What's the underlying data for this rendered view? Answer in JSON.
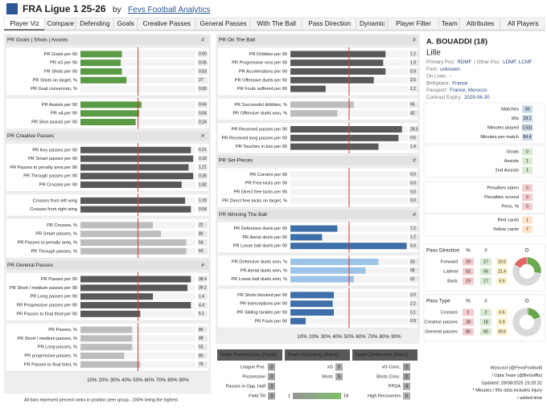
{
  "header": {
    "title": "FRA Ligue 1 25-26",
    "by": "by",
    "source": "Fevs Football Analytics"
  },
  "tabs": [
    "Player Viz",
    "Compare",
    "Defending",
    "Goals",
    "Creative Passes",
    "General Passes",
    "With The Ball",
    "Pass Direction",
    "Dynamic",
    "Player Filter",
    "Team",
    "Attributes",
    "All Players"
  ],
  "active_tab": 0,
  "bar_axis": {
    "xlim": [
      0,
      100
    ],
    "xticks": [
      {
        "value": 10,
        "label": "10%"
      },
      {
        "value": 20,
        "label": "20%"
      },
      {
        "value": 30,
        "label": "30%"
      },
      {
        "value": 40,
        "label": "40%"
      },
      {
        "value": 50,
        "label": "50%"
      },
      {
        "value": 60,
        "label": "60%"
      },
      {
        "value": 70,
        "label": "70%"
      },
      {
        "value": 80,
        "label": "80%"
      },
      {
        "value": 90,
        "label": "90%"
      }
    ],
    "reference": 50,
    "reference_color": "#e03131"
  },
  "left_panel": {
    "sections": [
      {
        "title": "PR Goals | Shots | Assists",
        "column": "#",
        "groups": [
          {
            "color": "#5b9b45",
            "rows": [
              {
                "label": "PR Goals per 90",
                "rank": 36,
                "value": "0.00"
              },
              {
                "label": "PR xG per 90",
                "rank": 35,
                "value": "0.06"
              },
              {
                "label": "PR Shots per 90",
                "rank": 36,
                "value": "0.53"
              },
              {
                "label": "PR Shots on target, %",
                "rank": 40,
                "value": "27"
              },
              {
                "label": "PR Goal conversion, %",
                "rank": 0,
                "value": "0.00"
              }
            ]
          },
          {
            "color": "#5b9b45",
            "rows": [
              {
                "label": "PR Assists per 90",
                "rank": 53,
                "value": "0.04"
              },
              {
                "label": "PR xA per 90",
                "rank": 51,
                "value": "0.04"
              },
              {
                "label": "PR Shot assists per 90",
                "rank": 48,
                "value": "0.24"
              }
            ]
          }
        ]
      },
      {
        "title": "PR Creative Passes",
        "column": "#",
        "groups": [
          {
            "color": "#595959",
            "rows": [
              {
                "label": "PR Key passes per 90",
                "rank": 96,
                "value": "0.21"
              },
              {
                "label": "PR Smart passes per 90",
                "rank": 98,
                "value": "0.18"
              },
              {
                "label": "PR Passes to penalty area per 90",
                "rank": 94,
                "value": "1.21"
              },
              {
                "label": "PR Through passes per 90",
                "rank": 98,
                "value": "0.35"
              },
              {
                "label": "PR Crosses per 90",
                "rank": 88,
                "value": "1.82"
              }
            ]
          },
          {
            "color": "#595959",
            "rows": [
              {
                "label": "Crosses from left wing",
                "rank": 91,
                "value": "1.19"
              },
              {
                "label": "Crosses from right wing",
                "rank": 96,
                "value": "0.64"
              }
            ]
          },
          {
            "color": "#bdbdbd",
            "rows": [
              {
                "label": "PR Crosses, %",
                "rank": 63,
                "value": "22"
              },
              {
                "label": "PR Smart passes, %",
                "rank": 70,
                "value": "80"
              },
              {
                "label": "PR Passes to penalty area, %",
                "rank": 92,
                "value": "54"
              },
              {
                "label": "PR Through passes, %",
                "rank": 92,
                "value": "60"
              }
            ]
          }
        ]
      },
      {
        "title": "PR General Passes",
        "column": "#",
        "groups": [
          {
            "color": "#595959",
            "rows": [
              {
                "label": "PR Passes per 90",
                "rank": 96,
                "value": "38.4"
              },
              {
                "label": "PR Short / medium passes per 90",
                "rank": 93,
                "value": "36.2"
              },
              {
                "label": "PR Long passes per 90",
                "rank": 63,
                "value": "1.4"
              },
              {
                "label": "PR Progressive passes per 90",
                "rank": 96,
                "value": "4.4"
              },
              {
                "label": "PR Passes to final third per 90",
                "rank": 52,
                "value": "5.1"
              }
            ]
          },
          {
            "color": "#bdbdbd",
            "rows": [
              {
                "label": "PR Passes, %",
                "rank": 45,
                "value": "86"
              },
              {
                "label": "PR Short / medium passes, %",
                "rank": 45,
                "value": "88"
              },
              {
                "label": "PR Long passes, %",
                "rank": 45,
                "value": "55"
              },
              {
                "label": "PR progressive passes, %",
                "rank": 38,
                "value": "80"
              },
              {
                "label": "PR Passes to final third, %",
                "rank": 52,
                "value": "76"
              }
            ]
          }
        ]
      }
    ],
    "note": "All bars represent percent ranks in position peer group - 100% being the highest"
  },
  "middle_panel": {
    "sections": [
      {
        "title": "PR On The Ball",
        "column": "#",
        "groups": [
          {
            "color": "#595959",
            "rows": [
              {
                "label": "PR Dribbles per 90",
                "rank": 81,
                "value": "1.2"
              },
              {
                "label": "PR Progressive runs per 90",
                "rank": 79,
                "value": "1.9"
              },
              {
                "label": "PR Accelerations per 90",
                "rank": 81,
                "value": "0.9"
              },
              {
                "label": "PR Offensive duels per 90",
                "rank": 71,
                "value": "2.5"
              },
              {
                "label": "PR Fouls suffered per 90",
                "rank": 30,
                "value": "1.2"
              }
            ]
          },
          {
            "color": "#bdbdbd",
            "rows": [
              {
                "label": "PR Successful dribbles, %",
                "rank": 54,
                "value": "65"
              },
              {
                "label": "PR Offensive duels won, %",
                "rank": 40,
                "value": "42"
              }
            ]
          },
          {
            "color": "#595959",
            "rows": [
              {
                "label": "PR Received passes per 90",
                "rank": 95,
                "value": "28.5"
              },
              {
                "label": "PR Received long passes per 90",
                "rank": 92,
                "value": "0.6"
              },
              {
                "label": "PR Touches in box per 90",
                "rank": 75,
                "value": "1.4"
              }
            ]
          }
        ]
      },
      {
        "title": "PR Set-Pieces",
        "column": "#",
        "groups": [
          {
            "color": "#595959",
            "rows": [
              {
                "label": "PR Corners per 90",
                "rank": 0,
                "value": "0.0"
              },
              {
                "label": "PR Free kicks per 90",
                "rank": 0,
                "value": "0.0"
              },
              {
                "label": "PR Direct free kicks per 90",
                "rank": 0,
                "value": "0.0"
              },
              {
                "label": "PR Direct free kicks on target, %",
                "rank": 0,
                "value": "0.0"
              }
            ]
          }
        ]
      },
      {
        "title": "PR Winning The Ball",
        "column": "#",
        "groups": [
          {
            "color": "#3f6fa8",
            "rows": [
              {
                "label": "PR Defensive duels per 90",
                "rank": 40,
                "value": "7.2"
              },
              {
                "label": "PR Aerial duels per 90",
                "rank": 27,
                "value": "1.2"
              },
              {
                "label": "PR Loose ball duels per 90",
                "rank": 99,
                "value": "5.0"
              }
            ]
          },
          {
            "color": "#9dc3e6",
            "rows": [
              {
                "label": "PR Defensive duels won, %",
                "rank": 75,
                "value": "63"
              },
              {
                "label": "PR Aerial duels won, %",
                "rank": 64,
                "value": "58"
              },
              {
                "label": "PR Loose ball duels won, %",
                "rank": 54,
                "value": "52"
              }
            ]
          },
          {
            "color": "#3f6fa8",
            "rows": [
              {
                "label": "PR Shots blocked per 90",
                "rank": 37,
                "value": "0.0"
              },
              {
                "label": "PR Interceptions per 90",
                "rank": 36,
                "value": "2.2"
              },
              {
                "label": "PR Sliding tackles per 90",
                "rank": 37,
                "value": "0.1"
              },
              {
                "label": "PR Fouls per 90",
                "rank": 13,
                "value": "0.9"
              }
            ]
          }
        ]
      }
    ]
  },
  "teams": [
    {
      "title": "Team Possession (Rank)",
      "rows": [
        {
          "label": "League Pos.",
          "rank": 3
        },
        {
          "label": "Possession",
          "rank": 3
        },
        {
          "label": "Passes in Opp. Half",
          "rank": 3
        },
        {
          "label": "Field Tilt",
          "rank": 3
        }
      ]
    },
    {
      "title": "Team Attacking (Rank)",
      "rows": [
        {
          "label": "xG",
          "rank": 5
        },
        {
          "label": "Shots",
          "rank": 5
        }
      ]
    },
    {
      "title": "Team Defensive (Rank)",
      "rows": [
        {
          "label": "xG Conc.",
          "rank": 2
        },
        {
          "label": "Shots Conc.",
          "rank": 2
        },
        {
          "label": "PPDA",
          "rank": 4
        },
        {
          "label": "High Recoveries",
          "rank": 6
        }
      ]
    }
  ],
  "rank_legend": {
    "min": 1,
    "max": 18
  },
  "player": {
    "name": "A. BOUADDI (18)",
    "club": "Lille",
    "info": [
      [
        {
          "label": "Primary Pos:",
          "value": "RDMF"
        },
        {
          "label": "| Other Pos:",
          "value": "LDMF,  LCMF"
        }
      ],
      [
        {
          "label": "Foot:",
          "value": "unknown"
        }
      ],
      [
        {
          "label": "On Loan:",
          "value": "-"
        }
      ],
      [
        {
          "label": "Birthplace:",
          "value": "France"
        }
      ],
      [
        {
          "label": "Passport:",
          "value": "France, Morocco"
        }
      ],
      [
        {
          "label": "Contract Expiry:",
          "value": "2029-06-30"
        }
      ]
    ]
  },
  "stat_boxes": [
    [
      {
        "label": "Matches",
        "value": 30
      },
      {
        "label": "90s",
        "value": 28.1
      },
      {
        "label": "Minutes played",
        "value": "2,531"
      },
      {
        "label": "Minutes per match",
        "value": 84.4
      }
    ],
    [
      {
        "label": "Goals",
        "value": 0
      },
      {
        "label": "Assists",
        "value": 1
      },
      {
        "label": "2nd Assists",
        "value": 1
      }
    ],
    [
      {
        "label": "Penalties taken",
        "value": 0
      },
      {
        "label": "Penalties scored",
        "value": 0
      },
      {
        "label": "Pens, %",
        "value": 0
      }
    ],
    [
      {
        "label": "Red cards",
        "value": 1
      },
      {
        "label": "Yellow cards",
        "value": 7
      }
    ]
  ],
  "pass_direction": {
    "title": "Pass Direction",
    "headers": [
      "%",
      "#",
      "O"
    ],
    "rows": [
      {
        "label": "Forward",
        "pct": 29,
        "count": 27,
        "per90": 10.5,
        "color": "#6aa84f"
      },
      {
        "label": "Lateral",
        "pct": 52,
        "count": 56,
        "per90": 21.4,
        "color": "#d9d9d9"
      },
      {
        "label": "Back",
        "pct": 19,
        "count": 17,
        "per90": 6.6,
        "color": "#e06666"
      }
    ]
  },
  "pass_type": {
    "title": "Pass Type",
    "headers": [
      "%",
      "#",
      "O"
    ],
    "rows": [
      {
        "label": "Crosses",
        "pct": 2,
        "count": 2,
        "per90": 0.6,
        "color": "#e06666"
      },
      {
        "label": "Creative passes",
        "pct": 28,
        "count": 18,
        "per90": 6.9,
        "color": "#6aa84f"
      },
      {
        "label": "General passes",
        "pct": 80,
        "count": 80,
        "per90": 30.6,
        "color": "#d9d9d9"
      }
    ]
  },
  "footer": [
    "Wyscout (@FevsFootball)",
    "/ Opta Team (@BeGriffis)",
    "Updated: 28/08/2025 15:20:32",
    "* Minutes / 90s data includes injury",
    "/ added time"
  ]
}
